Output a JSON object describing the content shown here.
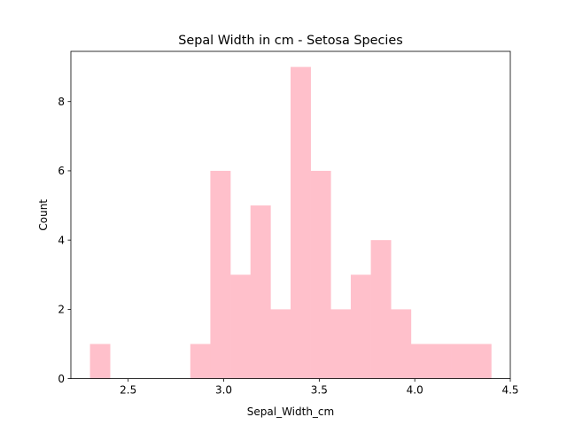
{
  "chart_data": {
    "type": "bar",
    "title": "Sepal Width in cm - Setosa Species",
    "xlabel": "Sepal_Width_cm",
    "ylabel": "Count",
    "xlim": [
      2.2,
      4.5
    ],
    "ylim": [
      0,
      9.45
    ],
    "xticks": [
      2.5,
      3.0,
      3.5,
      4.0,
      4.5
    ],
    "xtick_labels": [
      "2.5",
      "3.0",
      "3.5",
      "4.0",
      "4.5"
    ],
    "yticks": [
      0,
      2,
      4,
      6,
      8
    ],
    "ytick_labels": [
      "0",
      "2",
      "4",
      "6",
      "8"
    ],
    "bins": [
      2.3,
      2.405,
      2.51,
      2.615,
      2.72,
      2.825,
      2.93,
      3.035,
      3.14,
      3.245,
      3.35,
      3.455,
      3.56,
      3.665,
      3.77,
      3.875,
      3.98,
      4.085,
      4.19,
      4.295,
      4.4
    ],
    "counts": [
      1,
      0,
      0,
      0,
      0,
      1,
      6,
      3,
      5,
      2,
      9,
      6,
      2,
      3,
      4,
      2,
      1,
      1,
      1,
      1
    ],
    "bar_color": "#ffc0cb",
    "grid": false
  }
}
